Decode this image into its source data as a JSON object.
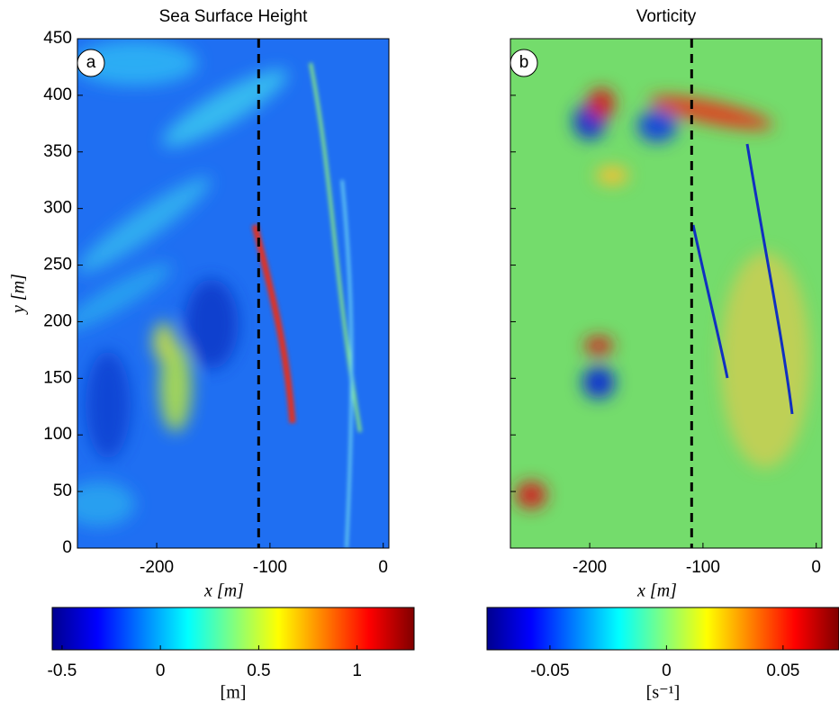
{
  "chart_data": [
    {
      "type": "heatmap",
      "title": "Sea Surface Height",
      "panel_label": "a",
      "xlabel": "x [m]",
      "ylabel": "y [m]",
      "xlim": [
        -270,
        5
      ],
      "ylim": [
        0,
        450
      ],
      "xticks": [
        -200,
        -100,
        0
      ],
      "yticks": [
        0,
        50,
        100,
        150,
        200,
        250,
        300,
        350,
        400,
        450
      ],
      "show_ytick_labels": true,
      "reference_line_x": -110,
      "colormap": "jet",
      "colorbar": {
        "label": "[m]",
        "lim": [
          -0.55,
          1.29
        ],
        "ticks": [
          -0.5,
          0,
          0.5,
          1
        ]
      }
    },
    {
      "type": "heatmap",
      "title": "Vorticity",
      "panel_label": "b",
      "xlabel": "x [m]",
      "xlim": [
        -270,
        5
      ],
      "ylim": [
        0,
        450
      ],
      "xticks": [
        -200,
        -100,
        0
      ],
      "yticks": [
        0,
        50,
        100,
        150,
        200,
        250,
        300,
        350,
        400,
        450
      ],
      "show_ytick_labels": false,
      "reference_line_x": -110,
      "colormap": "jet",
      "colorbar": {
        "label": "[s⁻¹]",
        "lim": [
          -0.077,
          0.074
        ],
        "ticks": [
          -0.05,
          0,
          0.05
        ]
      }
    }
  ]
}
